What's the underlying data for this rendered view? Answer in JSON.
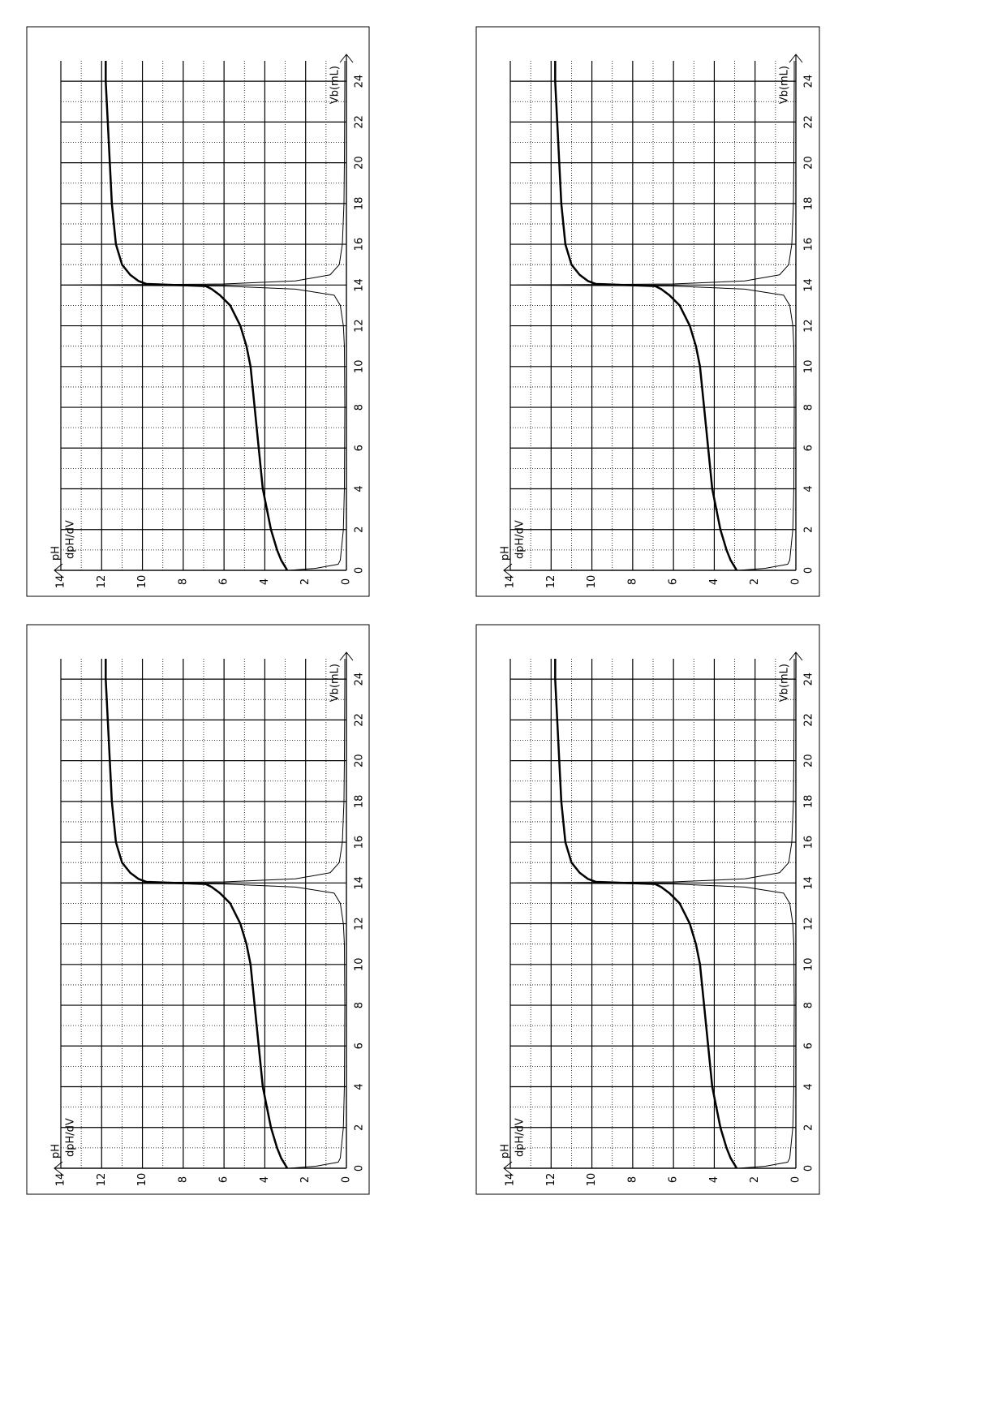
{
  "chart_data": [
    {
      "type": "line",
      "y_label": "pH",
      "y2_label": "dpH/dV",
      "x_label": "Vb(mL)",
      "xlim": [
        0,
        25
      ],
      "xticks": [
        0,
        2,
        4,
        6,
        8,
        10,
        12,
        14,
        16,
        18,
        20,
        22,
        24
      ],
      "ylim": [
        0,
        14
      ],
      "yticks": [
        0,
        2,
        4,
        6,
        8,
        10,
        12,
        14
      ],
      "grid": true,
      "series": [
        {
          "name": "pH",
          "color": "#000000",
          "width": 2.5,
          "x": [
            0,
            0.5,
            1,
            2,
            3,
            4,
            5,
            6,
            7,
            8,
            9,
            10,
            11,
            12,
            13,
            13.5,
            13.8,
            13.95,
            14.05,
            14.2,
            14.5,
            15,
            16,
            17,
            18,
            20,
            22,
            24,
            25
          ],
          "values": [
            2.9,
            3.2,
            3.4,
            3.7,
            3.9,
            4.1,
            4.2,
            4.3,
            4.4,
            4.5,
            4.6,
            4.7,
            4.9,
            5.2,
            5.7,
            6.2,
            6.6,
            6.9,
            9.8,
            10.2,
            10.6,
            11,
            11.3,
            11.4,
            11.5,
            11.6,
            11.7,
            11.8,
            11.8
          ]
        },
        {
          "name": "dpH/dV",
          "color": "#000000",
          "width": 1,
          "x": [
            0,
            0.1,
            0.3,
            0.5,
            1,
            2,
            4,
            8,
            11,
            12,
            13,
            13.5,
            13.8,
            13.95,
            14,
            14.05,
            14.2,
            14.5,
            15,
            16,
            18,
            20,
            24,
            25
          ],
          "values": [
            2.8,
            1.5,
            0.4,
            0.3,
            0.25,
            0.15,
            0.1,
            0.08,
            0.1,
            0.15,
            0.3,
            0.6,
            2.5,
            6,
            14,
            6,
            2.5,
            0.8,
            0.35,
            0.2,
            0.12,
            0.1,
            0.08,
            0.08
          ]
        }
      ]
    },
    {
      "type": "line",
      "y_label": "pH",
      "y2_label": "dpH/dV",
      "x_label": "Vb(mL)",
      "xlim": [
        0,
        25
      ],
      "xticks": [
        0,
        2,
        4,
        6,
        8,
        10,
        12,
        14,
        16,
        18,
        20,
        22,
        24
      ],
      "ylim": [
        0,
        14
      ],
      "yticks": [
        0,
        2,
        4,
        6,
        8,
        10,
        12,
        14
      ],
      "grid": true,
      "series": [
        {
          "name": "pH",
          "color": "#000000",
          "width": 2.5,
          "x": [
            0,
            0.5,
            1,
            2,
            3,
            4,
            5,
            6,
            7,
            8,
            9,
            10,
            11,
            12,
            13,
            13.5,
            13.8,
            13.95,
            14.05,
            14.2,
            14.5,
            15,
            16,
            17,
            18,
            20,
            22,
            24,
            25
          ],
          "values": [
            2.9,
            3.2,
            3.4,
            3.7,
            3.9,
            4.1,
            4.2,
            4.3,
            4.4,
            4.5,
            4.6,
            4.7,
            4.9,
            5.2,
            5.7,
            6.2,
            6.6,
            6.9,
            9.8,
            10.2,
            10.6,
            11,
            11.3,
            11.4,
            11.5,
            11.6,
            11.7,
            11.8,
            11.8
          ]
        },
        {
          "name": "dpH/dV",
          "color": "#000000",
          "width": 1,
          "x": [
            0,
            0.1,
            0.3,
            0.5,
            1,
            2,
            4,
            8,
            11,
            12,
            13,
            13.5,
            13.8,
            13.95,
            14,
            14.05,
            14.2,
            14.5,
            15,
            16,
            18,
            20,
            24,
            25
          ],
          "values": [
            2.8,
            1.5,
            0.4,
            0.3,
            0.25,
            0.15,
            0.1,
            0.08,
            0.1,
            0.15,
            0.3,
            0.6,
            2.5,
            6,
            14,
            6,
            2.5,
            0.8,
            0.35,
            0.2,
            0.12,
            0.1,
            0.08,
            0.08
          ]
        }
      ]
    },
    {
      "type": "line",
      "y_label": "pH",
      "y2_label": "dpH/dV",
      "x_label": "Vb(mL)",
      "xlim": [
        0,
        25
      ],
      "xticks": [
        0,
        2,
        4,
        6,
        8,
        10,
        12,
        14,
        16,
        18,
        20,
        22,
        24
      ],
      "ylim": [
        0,
        14
      ],
      "yticks": [
        0,
        2,
        4,
        6,
        8,
        10,
        12,
        14
      ],
      "grid": true,
      "series": [
        {
          "name": "pH",
          "color": "#000000",
          "width": 2.5,
          "x": [
            0,
            0.5,
            1,
            2,
            3,
            4,
            5,
            6,
            7,
            8,
            9,
            10,
            11,
            12,
            13,
            13.5,
            13.8,
            13.95,
            14.05,
            14.2,
            14.5,
            15,
            16,
            17,
            18,
            20,
            22,
            24,
            25
          ],
          "values": [
            2.9,
            3.2,
            3.4,
            3.7,
            3.9,
            4.1,
            4.2,
            4.3,
            4.4,
            4.5,
            4.6,
            4.7,
            4.9,
            5.2,
            5.7,
            6.2,
            6.6,
            6.9,
            9.8,
            10.2,
            10.6,
            11,
            11.3,
            11.4,
            11.5,
            11.6,
            11.7,
            11.8,
            11.8
          ]
        },
        {
          "name": "dpH/dV",
          "color": "#000000",
          "width": 1,
          "x": [
            0,
            0.1,
            0.3,
            0.5,
            1,
            2,
            4,
            8,
            11,
            12,
            13,
            13.5,
            13.8,
            13.95,
            14,
            14.05,
            14.2,
            14.5,
            15,
            16,
            18,
            20,
            24,
            25
          ],
          "values": [
            2.8,
            1.5,
            0.4,
            0.3,
            0.25,
            0.15,
            0.1,
            0.08,
            0.1,
            0.15,
            0.3,
            0.6,
            2.5,
            6,
            14,
            6,
            2.5,
            0.8,
            0.35,
            0.2,
            0.12,
            0.1,
            0.08,
            0.08
          ]
        }
      ]
    },
    {
      "type": "line",
      "y_label": "pH",
      "y2_label": "dpH/dV",
      "x_label": "Vb(mL)",
      "xlim": [
        0,
        25
      ],
      "xticks": [
        0,
        2,
        4,
        6,
        8,
        10,
        12,
        14,
        16,
        18,
        20,
        22,
        24
      ],
      "ylim": [
        0,
        14
      ],
      "yticks": [
        0,
        2,
        4,
        6,
        8,
        10,
        12,
        14
      ],
      "grid": true,
      "series": [
        {
          "name": "pH",
          "color": "#000000",
          "width": 2.5,
          "x": [
            0,
            0.5,
            1,
            2,
            3,
            4,
            5,
            6,
            7,
            8,
            9,
            10,
            11,
            12,
            13,
            13.5,
            13.8,
            13.95,
            14.05,
            14.2,
            14.5,
            15,
            16,
            17,
            18,
            20,
            22,
            24,
            25
          ],
          "values": [
            2.9,
            3.2,
            3.4,
            3.7,
            3.9,
            4.1,
            4.2,
            4.3,
            4.4,
            4.5,
            4.6,
            4.7,
            4.9,
            5.2,
            5.7,
            6.2,
            6.6,
            6.9,
            9.8,
            10.2,
            10.6,
            11,
            11.3,
            11.4,
            11.5,
            11.6,
            11.7,
            11.8,
            11.8
          ]
        },
        {
          "name": "dpH/dV",
          "color": "#000000",
          "width": 1,
          "x": [
            0,
            0.1,
            0.3,
            0.5,
            1,
            2,
            4,
            8,
            11,
            12,
            13,
            13.5,
            13.8,
            13.95,
            14,
            14.05,
            14.2,
            14.5,
            15,
            16,
            18,
            20,
            24,
            25
          ],
          "values": [
            2.8,
            1.5,
            0.4,
            0.3,
            0.25,
            0.15,
            0.1,
            0.08,
            0.1,
            0.15,
            0.3,
            0.6,
            2.5,
            6,
            14,
            6,
            2.5,
            0.8,
            0.35,
            0.2,
            0.12,
            0.1,
            0.08,
            0.08
          ]
        }
      ]
    }
  ]
}
